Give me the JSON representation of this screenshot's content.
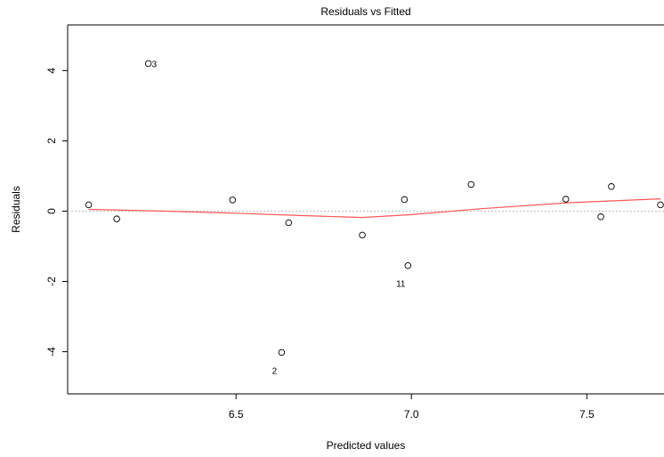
{
  "chart_data": {
    "type": "scatter",
    "title": "Residuals vs Fitted",
    "xlabel": "Predicted values",
    "ylabel": "Residuals",
    "xlim": [
      6.02,
      7.72
    ],
    "ylim": [
      -5.2,
      5.3
    ],
    "xticks": [
      6.5,
      7.0,
      7.5
    ],
    "yticks": [
      -4,
      -2,
      0,
      2,
      4
    ],
    "grid": false,
    "reference_line_y": 0,
    "colors": {
      "points": "#000000",
      "smooth": "#ff5555",
      "reference": "#bfbfbf"
    },
    "points": [
      {
        "x": 6.08,
        "y": 0.18,
        "label": ""
      },
      {
        "x": 6.16,
        "y": -0.22,
        "label": ""
      },
      {
        "x": 6.25,
        "y": 4.2,
        "label": "3"
      },
      {
        "x": 6.49,
        "y": 0.32,
        "label": ""
      },
      {
        "x": 6.63,
        "y": -4.02,
        "label": "2"
      },
      {
        "x": 6.65,
        "y": -0.33,
        "label": ""
      },
      {
        "x": 6.86,
        "y": -0.68,
        "label": ""
      },
      {
        "x": 6.98,
        "y": 0.33,
        "label": ""
      },
      {
        "x": 6.99,
        "y": -1.55,
        "label": "11"
      },
      {
        "x": 7.17,
        "y": 0.76,
        "label": ""
      },
      {
        "x": 7.44,
        "y": 0.34,
        "label": ""
      },
      {
        "x": 7.54,
        "y": -0.16,
        "label": ""
      },
      {
        "x": 7.57,
        "y": 0.7,
        "label": ""
      },
      {
        "x": 7.71,
        "y": 0.18,
        "label": ""
      }
    ],
    "smooth": [
      {
        "x": 6.08,
        "y": 0.05
      },
      {
        "x": 6.3,
        "y": 0.0
      },
      {
        "x": 6.5,
        "y": -0.06
      },
      {
        "x": 6.7,
        "y": -0.13
      },
      {
        "x": 6.86,
        "y": -0.18
      },
      {
        "x": 7.0,
        "y": -0.1
      },
      {
        "x": 7.2,
        "y": 0.07
      },
      {
        "x": 7.45,
        "y": 0.24
      },
      {
        "x": 7.71,
        "y": 0.35
      }
    ]
  }
}
